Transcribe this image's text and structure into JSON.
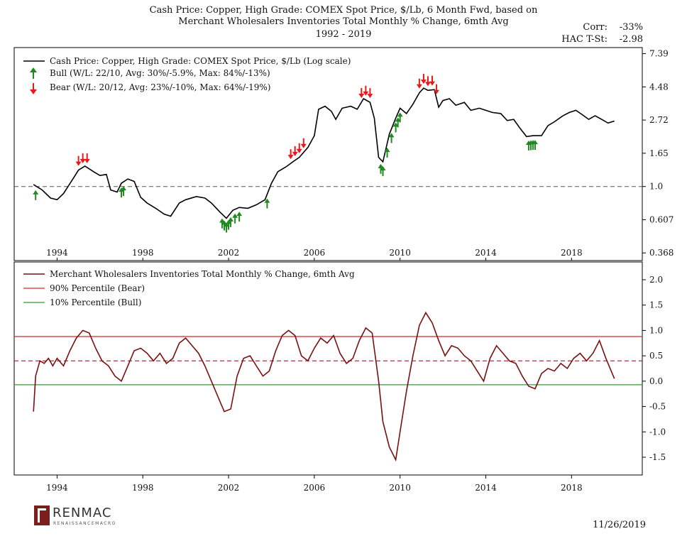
{
  "title": {
    "line1": "Cash Price: Copper, High Grade: COMEX Spot Price, $/Lb, 6 Month Fwd, based on",
    "line2": "Merchant Wholesalers Inventories Total Monthly % Change, 6mth Avg",
    "line3": "1992 - 2019"
  },
  "stats": {
    "corr_label": "Corr:",
    "corr_value": "-33%",
    "hac_label": "HAC T-St:",
    "hac_value": "-2.98"
  },
  "footer": {
    "logo_text": "RENMAC",
    "logo_sub": "RENAISSANCEMACRO",
    "date": "11/26/2019"
  },
  "colors": {
    "price_line": "#000000",
    "indicator_line": "#7a1010",
    "bear_line": "#d62728",
    "bull_line": "#2ca02c",
    "bull_arrow": "#1f8a1f",
    "bear_arrow": "#e41a1c"
  },
  "chart_data": [
    {
      "type": "line",
      "panel": "top",
      "y_scale": "log",
      "legend": {
        "price": "Cash Price: Copper, High Grade: COMEX Spot Price, $/Lb (Log scale)",
        "bull": "Bull   (W/L: 22/10, Avg: 30%/-5.9%, Max: 84%/-13%)",
        "bear": "Bear   (W/L: 20/12, Avg: 23%/-10%, Max: 64%/-19%)"
      },
      "x_ticks": [
        "1994",
        "1998",
        "2002",
        "2006",
        "2010",
        "2014",
        "2018"
      ],
      "y_ticks": [
        "7.39",
        "4.48",
        "2.72",
        "1.65",
        "1.0",
        "0.607",
        "0.368"
      ],
      "xlim": [
        1992.0,
        2021.3
      ],
      "ylim": [
        0.368,
        7.39
      ],
      "reference_line": 1.0,
      "series": [
        {
          "name": "Copper price",
          "points": [
            [
              1992.9,
              1.03
            ],
            [
              1993.3,
              0.95
            ],
            [
              1993.7,
              0.84
            ],
            [
              1994.0,
              0.82
            ],
            [
              1994.3,
              0.9
            ],
            [
              1994.7,
              1.1
            ],
            [
              1995.0,
              1.28
            ],
            [
              1995.3,
              1.36
            ],
            [
              1995.7,
              1.25
            ],
            [
              1996.0,
              1.18
            ],
            [
              1996.3,
              1.2
            ],
            [
              1996.5,
              0.95
            ],
            [
              1996.8,
              0.92
            ],
            [
              1997.0,
              1.05
            ],
            [
              1997.3,
              1.12
            ],
            [
              1997.6,
              1.08
            ],
            [
              1997.9,
              0.85
            ],
            [
              1998.2,
              0.78
            ],
            [
              1998.6,
              0.72
            ],
            [
              1999.0,
              0.66
            ],
            [
              1999.3,
              0.64
            ],
            [
              1999.7,
              0.78
            ],
            [
              2000.0,
              0.82
            ],
            [
              2000.5,
              0.86
            ],
            [
              2000.9,
              0.84
            ],
            [
              2001.2,
              0.78
            ],
            [
              2001.6,
              0.68
            ],
            [
              2001.9,
              0.62
            ],
            [
              2002.2,
              0.7
            ],
            [
              2002.5,
              0.73
            ],
            [
              2002.9,
              0.72
            ],
            [
              2003.3,
              0.76
            ],
            [
              2003.7,
              0.82
            ],
            [
              2004.0,
              1.05
            ],
            [
              2004.3,
              1.25
            ],
            [
              2004.7,
              1.35
            ],
            [
              2005.0,
              1.45
            ],
            [
              2005.3,
              1.55
            ],
            [
              2005.7,
              1.8
            ],
            [
              2006.0,
              2.15
            ],
            [
              2006.2,
              3.2
            ],
            [
              2006.5,
              3.35
            ],
            [
              2006.8,
              3.1
            ],
            [
              2007.0,
              2.75
            ],
            [
              2007.3,
              3.25
            ],
            [
              2007.7,
              3.35
            ],
            [
              2008.0,
              3.2
            ],
            [
              2008.3,
              3.75
            ],
            [
              2008.6,
              3.55
            ],
            [
              2008.8,
              2.8
            ],
            [
              2009.0,
              1.55
            ],
            [
              2009.2,
              1.45
            ],
            [
              2009.5,
              2.2
            ],
            [
              2009.8,
              2.8
            ],
            [
              2010.0,
              3.25
            ],
            [
              2010.3,
              3.0
            ],
            [
              2010.6,
              3.45
            ],
            [
              2010.9,
              4.1
            ],
            [
              2011.1,
              4.4
            ],
            [
              2011.3,
              4.25
            ],
            [
              2011.6,
              4.3
            ],
            [
              2011.8,
              3.3
            ],
            [
              2012.0,
              3.65
            ],
            [
              2012.3,
              3.75
            ],
            [
              2012.6,
              3.4
            ],
            [
              2013.0,
              3.55
            ],
            [
              2013.3,
              3.15
            ],
            [
              2013.7,
              3.25
            ],
            [
              2014.0,
              3.15
            ],
            [
              2014.3,
              3.05
            ],
            [
              2014.7,
              3.0
            ],
            [
              2015.0,
              2.7
            ],
            [
              2015.3,
              2.75
            ],
            [
              2015.6,
              2.4
            ],
            [
              2015.9,
              2.12
            ],
            [
              2016.2,
              2.15
            ],
            [
              2016.6,
              2.15
            ],
            [
              2016.9,
              2.5
            ],
            [
              2017.2,
              2.65
            ],
            [
              2017.6,
              2.9
            ],
            [
              2017.9,
              3.05
            ],
            [
              2018.2,
              3.15
            ],
            [
              2018.5,
              2.95
            ],
            [
              2018.8,
              2.75
            ],
            [
              2019.1,
              2.9
            ],
            [
              2019.4,
              2.75
            ],
            [
              2019.7,
              2.6
            ],
            [
              2020.0,
              2.68
            ]
          ]
        }
      ],
      "signals": {
        "bull": [
          1993.0,
          1997.0,
          1997.1,
          2001.7,
          2001.8,
          2001.9,
          2002.0,
          2002.1,
          2002.3,
          2002.5,
          2003.8,
          2009.1,
          2009.2,
          2009.4,
          2009.6,
          2009.8,
          2009.9,
          2010.0,
          2016.0,
          2016.1,
          2016.2,
          2016.3
        ],
        "bear": [
          1995.0,
          1995.2,
          1995.4,
          2004.9,
          2005.1,
          2005.3,
          2005.5,
          2008.2,
          2008.4,
          2008.6,
          2010.9,
          2011.1,
          2011.3,
          2011.5,
          2011.7
        ]
      }
    },
    {
      "type": "line",
      "panel": "bottom",
      "legend": {
        "series": "Merchant Wholesalers Inventories Total Monthly % Change, 6mth Avg",
        "bear": "90% Percentile (Bear)",
        "bull": "10% Percentile (Bull)"
      },
      "x_ticks": [
        "1994",
        "1998",
        "2002",
        "2006",
        "2010",
        "2014",
        "2018"
      ],
      "y_ticks": [
        "2.0",
        "1.5",
        "1.0",
        "0.5",
        "0.0",
        "-0.5",
        "-1.0",
        "-1.5"
      ],
      "xlim": [
        1992.0,
        2021.3
      ],
      "ylim": [
        -1.85,
        2.35
      ],
      "reference_lines": {
        "bear": 0.88,
        "median": 0.4,
        "bull": -0.07
      },
      "series": [
        {
          "name": "Inventories 6mth avg % change",
          "points": [
            [
              1992.9,
              -0.6
            ],
            [
              1993.0,
              0.1
            ],
            [
              1993.2,
              0.4
            ],
            [
              1993.4,
              0.35
            ],
            [
              1993.6,
              0.45
            ],
            [
              1993.8,
              0.3
            ],
            [
              1994.0,
              0.45
            ],
            [
              1994.3,
              0.3
            ],
            [
              1994.6,
              0.6
            ],
            [
              1994.9,
              0.85
            ],
            [
              1995.2,
              1.0
            ],
            [
              1995.5,
              0.95
            ],
            [
              1995.8,
              0.65
            ],
            [
              1996.1,
              0.4
            ],
            [
              1996.4,
              0.3
            ],
            [
              1996.7,
              0.1
            ],
            [
              1997.0,
              0.0
            ],
            [
              1997.3,
              0.3
            ],
            [
              1997.6,
              0.6
            ],
            [
              1997.9,
              0.65
            ],
            [
              1998.2,
              0.55
            ],
            [
              1998.5,
              0.4
            ],
            [
              1998.8,
              0.55
            ],
            [
              1999.1,
              0.35
            ],
            [
              1999.4,
              0.45
            ],
            [
              1999.7,
              0.75
            ],
            [
              2000.0,
              0.85
            ],
            [
              2000.3,
              0.7
            ],
            [
              2000.6,
              0.55
            ],
            [
              2000.9,
              0.3
            ],
            [
              2001.2,
              0.0
            ],
            [
              2001.5,
              -0.3
            ],
            [
              2001.8,
              -0.6
            ],
            [
              2002.1,
              -0.55
            ],
            [
              2002.4,
              0.1
            ],
            [
              2002.7,
              0.45
            ],
            [
              2003.0,
              0.5
            ],
            [
              2003.3,
              0.3
            ],
            [
              2003.6,
              0.1
            ],
            [
              2003.9,
              0.2
            ],
            [
              2004.2,
              0.6
            ],
            [
              2004.5,
              0.9
            ],
            [
              2004.8,
              1.0
            ],
            [
              2005.1,
              0.9
            ],
            [
              2005.4,
              0.5
            ],
            [
              2005.7,
              0.4
            ],
            [
              2006.0,
              0.65
            ],
            [
              2006.3,
              0.85
            ],
            [
              2006.6,
              0.75
            ],
            [
              2006.9,
              0.9
            ],
            [
              2007.2,
              0.55
            ],
            [
              2007.5,
              0.35
            ],
            [
              2007.8,
              0.45
            ],
            [
              2008.1,
              0.8
            ],
            [
              2008.4,
              1.05
            ],
            [
              2008.7,
              0.95
            ],
            [
              2009.0,
              0.0
            ],
            [
              2009.2,
              -0.8
            ],
            [
              2009.5,
              -1.3
            ],
            [
              2009.8,
              -1.55
            ],
            [
              2010.0,
              -1.0
            ],
            [
              2010.3,
              -0.2
            ],
            [
              2010.6,
              0.5
            ],
            [
              2010.9,
              1.1
            ],
            [
              2011.2,
              1.35
            ],
            [
              2011.5,
              1.15
            ],
            [
              2011.8,
              0.8
            ],
            [
              2012.1,
              0.5
            ],
            [
              2012.4,
              0.7
            ],
            [
              2012.7,
              0.65
            ],
            [
              2013.0,
              0.5
            ],
            [
              2013.3,
              0.4
            ],
            [
              2013.6,
              0.2
            ],
            [
              2013.9,
              0.0
            ],
            [
              2014.2,
              0.45
            ],
            [
              2014.5,
              0.7
            ],
            [
              2014.8,
              0.55
            ],
            [
              2015.1,
              0.4
            ],
            [
              2015.4,
              0.35
            ],
            [
              2015.7,
              0.1
            ],
            [
              2016.0,
              -0.1
            ],
            [
              2016.3,
              -0.15
            ],
            [
              2016.6,
              0.15
            ],
            [
              2016.9,
              0.25
            ],
            [
              2017.2,
              0.2
            ],
            [
              2017.5,
              0.35
            ],
            [
              2017.8,
              0.25
            ],
            [
              2018.1,
              0.45
            ],
            [
              2018.4,
              0.55
            ],
            [
              2018.7,
              0.4
            ],
            [
              2019.0,
              0.55
            ],
            [
              2019.3,
              0.8
            ],
            [
              2019.6,
              0.45
            ],
            [
              2020.0,
              0.05
            ]
          ]
        }
      ]
    }
  ]
}
